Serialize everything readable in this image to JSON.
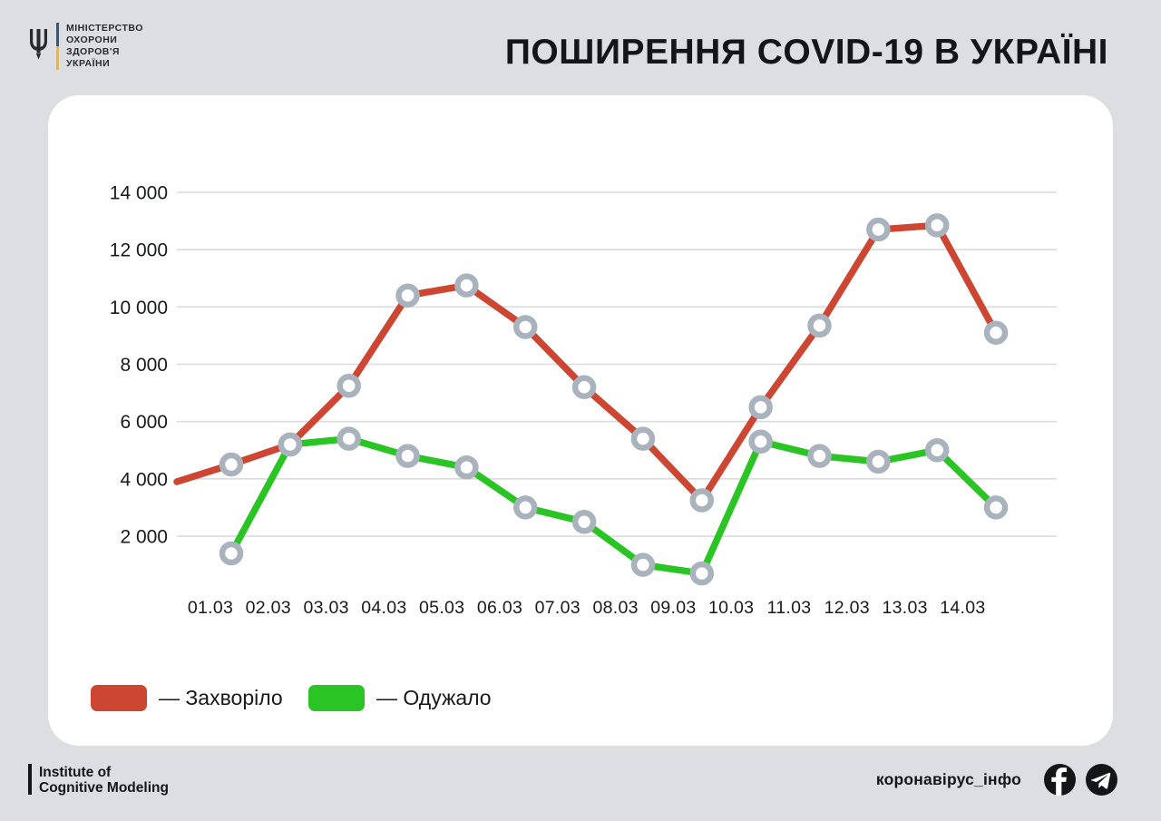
{
  "header": {
    "ministry_lines": [
      "МІНІСТЕРСТВО",
      "ОХОРОНИ",
      "ЗДОРОВ'Я",
      "УКРАЇНИ"
    ]
  },
  "chart_data": {
    "type": "line",
    "title": "ПОШИРЕННЯ COVID-19 В УКРАЇНІ",
    "categories": [
      "01.03",
      "02.03",
      "03.03",
      "04.03",
      "05.03",
      "06.03",
      "07.03",
      "08.03",
      "09.03",
      "10.03",
      "11.03",
      "12.03",
      "13.03",
      "14.03"
    ],
    "series": [
      {
        "name": "Захворіло",
        "color": "#cc4631",
        "leadin_value": 3900,
        "values": [
          4500,
          5200,
          7250,
          10400,
          10750,
          9300,
          7200,
          5400,
          3250,
          6500,
          9350,
          12700,
          12850,
          9100
        ]
      },
      {
        "name": "Одужало",
        "color": "#2bc425",
        "values": [
          1400,
          5200,
          5400,
          4800,
          4400,
          3000,
          2500,
          1000,
          700,
          5300,
          4800,
          4600,
          5000,
          3000
        ]
      }
    ],
    "ylim": [
      0,
      14000
    ],
    "yticks": [
      2000,
      4000,
      6000,
      8000,
      10000,
      12000,
      14000
    ],
    "ytick_labels": [
      "2 000",
      "4 000",
      "6 000",
      "8 000",
      "10 000",
      "12 000",
      "14 000"
    ],
    "grid": "horizontal-only",
    "gridline_color": "#dadbdc",
    "marker": "open-circle",
    "marker_color": "#a9b3bd",
    "legend_position": "bottom-left"
  },
  "legend": {
    "items": [
      {
        "label": "— Захворіло",
        "color": "#cc4631"
      },
      {
        "label": "— Одужало",
        "color": "#2bc425"
      }
    ]
  },
  "footer": {
    "institute_line1": "Institute of",
    "institute_line2": "Cognitive Modeling",
    "handle": "коронавірус_інфо",
    "social_icons": [
      "facebook-icon",
      "telegram-icon"
    ]
  },
  "colors": {
    "page_background": "#dcdee1",
    "card_background": "#ffffff",
    "text_dark": "#141518",
    "flag_blue": "#44546b",
    "flag_yellow": "#d9b967"
  }
}
